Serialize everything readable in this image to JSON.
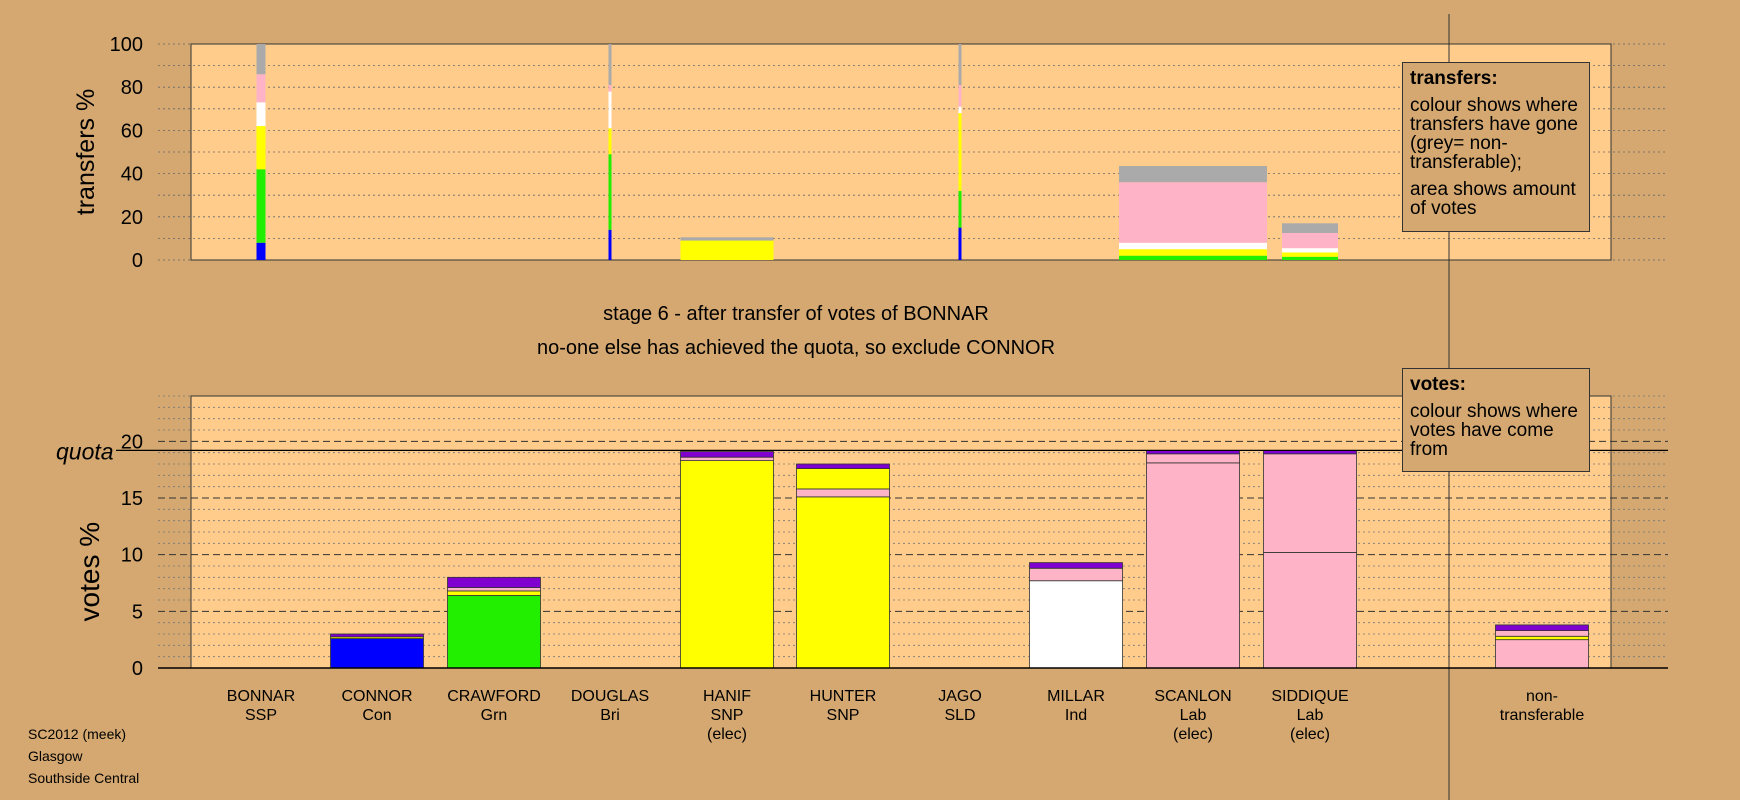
{
  "footer": {
    "line1": "SC2012 (meek)",
    "line2": "Glasgow",
    "line3": "Southside Central"
  },
  "legend_transfers": {
    "title": "transfers:",
    "text1": "colour shows where transfers have gone (grey= non-transferable);",
    "text2": "area shows amount of votes"
  },
  "legend_votes": {
    "title": "votes:",
    "text1": "colour shows where votes have come from"
  },
  "colors": {
    "background": "#d4a870",
    "plot": "#ffcc8c",
    "SSP": "#a6a6a6",
    "Con": "#0000ff",
    "Grn": "#22ee00",
    "SNP": "#ffff00",
    "Ind": "#ffffff",
    "Lab": "#ffb3c6",
    "Other": "#8000d0",
    "nontransferable": "#aaaaaa"
  },
  "chart_data": [
    {
      "type": "bar",
      "panel": "transfers",
      "ylabel": "transfers %",
      "ylim": [
        0,
        100
      ],
      "yticks": [
        0,
        20,
        40,
        60,
        80,
        100
      ],
      "candidates": [
        "BONNAR",
        "CONNOR",
        "CRAWFORD",
        "DOUGLAS",
        "HANIF",
        "HUNTER",
        "JAGO",
        "MILLAR",
        "SCANLON",
        "SIDDIQUE",
        "non-transferable"
      ],
      "bars": [
        {
          "candidate": "BONNAR",
          "width": "thin",
          "segments": [
            {
              "color": "Con",
              "value": 8
            },
            {
              "color": "Grn",
              "value": 34
            },
            {
              "color": "SNP",
              "value": 20
            },
            {
              "color": "Ind",
              "value": 11
            },
            {
              "color": "Lab",
              "value": 13
            },
            {
              "color": "nontransferable",
              "value": 14
            }
          ]
        },
        {
          "candidate": "DOUGLAS",
          "width": "hairline",
          "segments": [
            {
              "color": "Con",
              "value": 14
            },
            {
              "color": "Grn",
              "value": 35
            },
            {
              "color": "SNP",
              "value": 12
            },
            {
              "color": "Ind",
              "value": 17
            },
            {
              "color": "Lab",
              "value": 3
            },
            {
              "color": "nontransferable",
              "value": 19
            }
          ]
        },
        {
          "candidate": "HANIF",
          "width": "full",
          "segments": [
            {
              "color": "SNP",
              "value": 9
            },
            {
              "color": "nontransferable",
              "value": 1.5
            }
          ]
        },
        {
          "candidate": "JAGO",
          "width": "hairline",
          "segments": [
            {
              "color": "Con",
              "value": 15
            },
            {
              "color": "Grn",
              "value": 17
            },
            {
              "color": "SNP",
              "value": 36
            },
            {
              "color": "Ind",
              "value": 3
            },
            {
              "color": "Lab",
              "value": 10
            },
            {
              "color": "nontransferable",
              "value": 19
            }
          ]
        },
        {
          "candidate": "SCANLON",
          "width": "wide",
          "segments": [
            {
              "color": "Grn",
              "value": 2
            },
            {
              "color": "SNP",
              "value": 3
            },
            {
              "color": "Ind",
              "value": 3
            },
            {
              "color": "Lab",
              "value": 28
            },
            {
              "color": "nontransferable",
              "value": 7.5
            }
          ]
        },
        {
          "candidate": "SIDDIQUE",
          "width": "medium",
          "segments": [
            {
              "color": "Grn",
              "value": 1.5
            },
            {
              "color": "SNP",
              "value": 2
            },
            {
              "color": "Ind",
              "value": 2
            },
            {
              "color": "Lab",
              "value": 7
            },
            {
              "color": "nontransferable",
              "value": 4.5
            }
          ]
        }
      ]
    },
    {
      "type": "bar",
      "panel": "votes",
      "stage_title": "stage 6 - after transfer of votes of BONNAR",
      "subtitle": "no-one else has achieved the quota, so exclude CONNOR",
      "ylabel": "votes %",
      "quota_label": "quota",
      "quota": 19.2,
      "ylim": [
        0,
        24
      ],
      "yticks": [
        0,
        5,
        10,
        15,
        20
      ],
      "grid": true,
      "categories": [
        "BONNAR",
        "CONNOR",
        "CRAWFORD",
        "DOUGLAS",
        "HANIF",
        "HUNTER",
        "JAGO",
        "MILLAR",
        "SCANLON",
        "SIDDIQUE",
        "non-transferable"
      ],
      "labels": [
        [
          "BONNAR",
          "SSP"
        ],
        [
          "CONNOR",
          "Con"
        ],
        [
          "CRAWFORD",
          "Grn"
        ],
        [
          "DOUGLAS",
          "Bri"
        ],
        [
          "HANIF",
          "SNP",
          "(elec)"
        ],
        [
          "HUNTER",
          "SNP"
        ],
        [
          "JAGO",
          "SLD"
        ],
        [
          "MILLAR",
          "Ind"
        ],
        [
          "SCANLON",
          "Lab",
          "(elec)"
        ],
        [
          "SIDDIQUE",
          "Lab",
          "(elec)"
        ],
        [
          "non-",
          "transferable"
        ]
      ],
      "bars": [
        {
          "candidate": "BONNAR",
          "segments": []
        },
        {
          "candidate": "CONNOR",
          "segments": [
            {
              "color": "Con",
              "value": 2.6
            },
            {
              "color": "SNP",
              "value": 0.15
            },
            {
              "color": "Other",
              "value": 0.25
            }
          ]
        },
        {
          "candidate": "CRAWFORD",
          "segments": [
            {
              "color": "Grn",
              "value": 6.4
            },
            {
              "color": "SNP",
              "value": 0.4
            },
            {
              "color": "Lab",
              "value": 0.3
            },
            {
              "color": "Other",
              "value": 0.9
            }
          ]
        },
        {
          "candidate": "DOUGLAS",
          "segments": []
        },
        {
          "candidate": "HANIF",
          "segments": [
            {
              "color": "SNP",
              "value": 18.3
            },
            {
              "color": "Lab",
              "value": 0.3
            },
            {
              "color": "Other",
              "value": 0.5
            }
          ]
        },
        {
          "candidate": "HUNTER",
          "segments": [
            {
              "color": "SNP",
              "value": 15.1
            },
            {
              "color": "Lab",
              "value": 0.7
            },
            {
              "color": "SNP",
              "value": 1.8
            },
            {
              "color": "Other",
              "value": 0.4
            }
          ]
        },
        {
          "candidate": "JAGO",
          "segments": []
        },
        {
          "candidate": "MILLAR",
          "segments": [
            {
              "color": "Ind",
              "value": 7.7
            },
            {
              "color": "Lab",
              "value": 1.1
            },
            {
              "color": "Other",
              "value": 0.5
            }
          ]
        },
        {
          "candidate": "SCANLON",
          "segments": [
            {
              "color": "Lab",
              "value": 18.1
            },
            {
              "color": "Lab",
              "value": 0.8
            },
            {
              "color": "Other",
              "value": 0.3
            }
          ]
        },
        {
          "candidate": "SIDDIQUE",
          "segments": [
            {
              "color": "Lab",
              "value": 10.2
            },
            {
              "color": "Lab",
              "value": 8.7
            },
            {
              "color": "Other",
              "value": 0.3
            }
          ]
        },
        {
          "candidate": "non-transferable",
          "segments": [
            {
              "color": "Lab",
              "value": 2.5
            },
            {
              "color": "SNP",
              "value": 0.3
            },
            {
              "color": "Lab",
              "value": 0.5
            },
            {
              "color": "Other",
              "value": 0.5
            }
          ]
        }
      ]
    }
  ]
}
